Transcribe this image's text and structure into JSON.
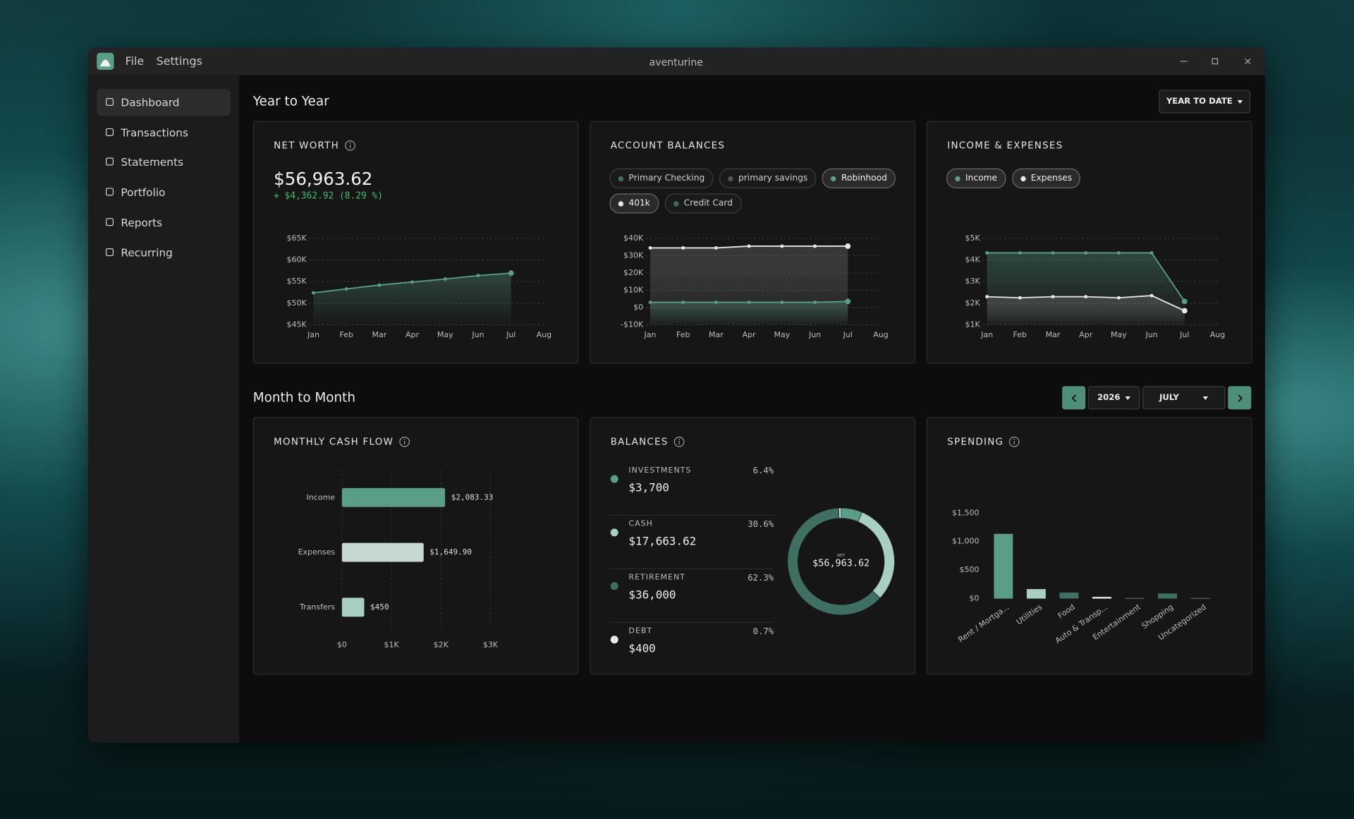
{
  "window": {
    "title": "aventurine",
    "menu": [
      "File",
      "Settings"
    ]
  },
  "sidebar": [
    "Dashboard",
    "Transactions",
    "Statements",
    "Portfolio",
    "Reports",
    "Recurring"
  ],
  "year_to_year": {
    "title": "Year to Year",
    "range": "YEAR TO DATE"
  },
  "net_worth": {
    "title": "NET WORTH",
    "value": "$56,963.62",
    "change": "+ $4,362.92 (8.29 %)",
    "chart_data": {
      "type": "line",
      "categories": [
        "Jan",
        "Feb",
        "Mar",
        "Apr",
        "May",
        "Jun",
        "Jul",
        "Aug"
      ],
      "series": [
        {
          "color": "#5a9e8a",
          "values": [
            52400,
            53300,
            54200,
            54900,
            55600,
            56400,
            56963.62,
            null
          ]
        }
      ],
      "ylim": [
        45000,
        65000
      ],
      "yticks": [
        {
          "value": 45000,
          "label": "$45K"
        },
        {
          "value": 50000,
          "label": "$50K"
        },
        {
          "value": 55000,
          "label": "$55K"
        },
        {
          "value": 60000,
          "label": "$60K"
        },
        {
          "value": 65000,
          "label": "$65K"
        }
      ],
      "grid": true
    }
  },
  "account_balances": {
    "title": "ACCOUNT BALANCES",
    "chart_data": {
      "type": "line",
      "categories": [
        "Jan",
        "Feb",
        "Mar",
        "Apr",
        "May",
        "Jun",
        "Jul",
        "Aug"
      ],
      "legend": [
        {
          "name": "Primary Checking",
          "color": "#3f6e62",
          "active": false
        },
        {
          "name": "primary savings",
          "color": "#555555",
          "active": false
        },
        {
          "name": "Robinhood",
          "color": "#5a9e8a",
          "active": true
        },
        {
          "name": "401k",
          "color": "#e8e8e8",
          "active": true
        },
        {
          "name": "Credit Card",
          "color": "#3f6e62",
          "active": false
        }
      ],
      "series": [
        {
          "name": "401k",
          "values": [
            34500,
            34500,
            34500,
            35500,
            35500,
            35500,
            35500,
            null
          ]
        },
        {
          "name": "Robinhood",
          "values": [
            3000,
            3000,
            3000,
            3000,
            3000,
            3000,
            3500,
            null
          ]
        }
      ],
      "ylim": [
        -10000,
        40000
      ],
      "yticks": [
        {
          "value": -10000,
          "label": "-$10K"
        },
        {
          "value": 0,
          "label": "$0"
        },
        {
          "value": 10000,
          "label": "$10K"
        },
        {
          "value": 20000,
          "label": "$20K"
        },
        {
          "value": 30000,
          "label": "$30K"
        },
        {
          "value": 40000,
          "label": "$40K"
        }
      ],
      "grid": true
    }
  },
  "income_expenses": {
    "title": "INCOME & EXPENSES",
    "chart_data": {
      "type": "line",
      "categories": [
        "Jan",
        "Feb",
        "Mar",
        "Apr",
        "May",
        "Jun",
        "Jul",
        "Aug"
      ],
      "series": [
        {
          "name": "Income",
          "color": "#5a9e8a",
          "values": [
            4330,
            4330,
            4330,
            4330,
            4330,
            4330,
            2083.33,
            null
          ]
        },
        {
          "name": "Expenses",
          "color": "#e8e8e8",
          "values": [
            2300,
            2250,
            2300,
            2300,
            2250,
            2350,
            1649.9,
            null
          ]
        }
      ],
      "ylim": [
        1000,
        5000
      ],
      "yticks": [
        {
          "value": 1000,
          "label": "$1K"
        },
        {
          "value": 2000,
          "label": "$2K"
        },
        {
          "value": 3000,
          "label": "$3K"
        },
        {
          "value": 4000,
          "label": "$4K"
        },
        {
          "value": 5000,
          "label": "$5K"
        }
      ],
      "grid": true
    }
  },
  "month_to_month": {
    "title": "Month to Month",
    "year": "2026",
    "month": "JULY"
  },
  "monthly_cash_flow": {
    "title": "MONTHLY CASH FLOW",
    "chart_data": {
      "type": "bar",
      "orientation": "horizontal",
      "categories": [
        "Income",
        "Expenses",
        "Transfers"
      ],
      "values": [
        2083.33,
        1649.9,
        450
      ],
      "value_labels": [
        "$2,083.33",
        "$1,649.90",
        "$450"
      ],
      "colors": [
        "#5a9e8a",
        "#c5d8d1",
        "#a9cfc3"
      ],
      "xlim": [
        0,
        3000
      ],
      "xticks": [
        {
          "value": 0,
          "label": "$0"
        },
        {
          "value": 1000,
          "label": "$1K"
        },
        {
          "value": 2000,
          "label": "$2K"
        },
        {
          "value": 3000,
          "label": "$3K"
        }
      ],
      "grid": true
    }
  },
  "balances": {
    "title": "BALANCES",
    "center_label": "NET",
    "center_value": "$56,963.62",
    "chart_data": {
      "type": "pie",
      "donut": true,
      "categories": [
        "INVESTMENTS",
        "CASH",
        "RETIREMENT",
        "DEBT"
      ],
      "values": [
        3700,
        17663.62,
        36000,
        400
      ],
      "value_labels": [
        "$3,700",
        "$17,663.62",
        "$36,000",
        "$400"
      ],
      "percent_labels": [
        "6.4%",
        "30.6%",
        "62.3%",
        "0.7%"
      ],
      "colors": [
        "#5a9e8a",
        "#a9cfc3",
        "#3f6e62",
        "#e8e8e8"
      ]
    }
  },
  "spending": {
    "title": "SPENDING",
    "chart_data": {
      "type": "bar",
      "categories": [
        "Rent / Mortga...",
        "Utilities",
        "Food",
        "Auto & Transp...",
        "Entertainment",
        "Shopping",
        "Uncategorized"
      ],
      "values": [
        1136,
        167,
        106,
        30,
        10,
        90,
        10
      ],
      "colors": [
        "#5a9e8a",
        "#a9cfc3",
        "#3f6e62",
        "#e8e8e8",
        "#5a9e8a",
        "#3f6e62",
        "#5a9e8a"
      ],
      "ylim": [
        0,
        1500
      ],
      "yticks": [
        {
          "value": 0,
          "label": "$0"
        },
        {
          "value": 500,
          "label": "$500"
        },
        {
          "value": 1000,
          "label": "$1,000"
        },
        {
          "value": 1500,
          "label": "$1,500"
        }
      ],
      "grid": false
    }
  }
}
